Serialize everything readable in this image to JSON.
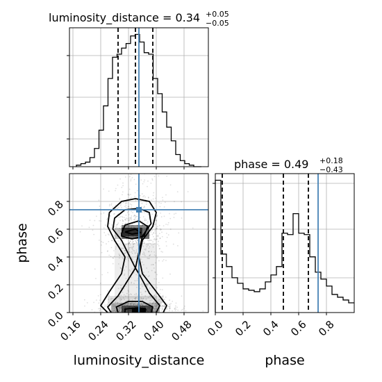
{
  "chart_data": {
    "type": "corner",
    "parameters": [
      "luminosity_distance",
      "phase"
    ],
    "truths": {
      "luminosity_distance": 0.35,
      "phase": 0.74
    },
    "panels": [
      {
        "id": "luminosity_distance-marginal",
        "type": "step-histogram",
        "title_name": "luminosity_distance",
        "title_median": "0.34",
        "title_plus": "+0.05",
        "title_minus": "−0.05",
        "xlim": [
          0.15,
          0.55
        ],
        "quantiles": [
          0.29,
          0.34,
          0.39
        ],
        "truth": 0.35,
        "grid": true,
        "bin_edges": [
          0.17,
          0.183,
          0.196,
          0.209,
          0.222,
          0.235,
          0.248,
          0.261,
          0.274,
          0.287,
          0.3,
          0.313,
          0.326,
          0.339,
          0.352,
          0.365,
          0.378,
          0.391,
          0.404,
          0.417,
          0.43,
          0.443,
          0.456,
          0.469,
          0.482,
          0.495,
          0.508,
          0.53
        ],
        "counts": [
          1,
          2,
          3,
          6,
          12,
          24,
          40,
          58,
          72,
          74,
          78,
          81,
          86,
          87,
          82,
          75,
          74,
          58,
          48,
          36,
          26,
          17,
          8,
          4,
          2,
          1,
          0
        ]
      },
      {
        "id": "phase-marginal",
        "type": "step-histogram",
        "title_name": "phase",
        "title_median": "0.49",
        "title_plus": "+0.18",
        "title_minus": "−0.43",
        "xlim": [
          0.0,
          1.0
        ],
        "xlabel": "phase",
        "xticks": [
          "0.0",
          "0.2",
          "0.4",
          "0.6",
          "0.8"
        ],
        "quantiles": [
          0.05,
          0.49,
          0.67
        ],
        "truth": 0.74,
        "grid": true,
        "bin_edges": [
          0.0,
          0.04,
          0.08,
          0.12,
          0.16,
          0.2,
          0.24,
          0.28,
          0.32,
          0.36,
          0.4,
          0.44,
          0.48,
          0.52,
          0.56,
          0.6,
          0.64,
          0.68,
          0.72,
          0.76,
          0.8,
          0.84,
          0.88,
          0.92,
          0.96,
          1.0
        ],
        "counts": [
          95,
          42,
          33,
          25,
          21,
          17,
          16,
          15,
          17,
          22,
          27,
          33,
          57,
          56,
          71,
          57,
          56,
          40,
          29,
          24,
          19,
          13,
          11,
          9,
          7
        ]
      },
      {
        "id": "luminosity_distance-vs-phase",
        "type": "2d-density-contour",
        "xlabel": "luminosity_distance",
        "ylabel": "phase",
        "xlim": [
          0.15,
          0.55
        ],
        "ylim": [
          0.0,
          1.0
        ],
        "xticks": [
          "0.16",
          "0.24",
          "0.32",
          "0.40",
          "0.48"
        ],
        "yticks": [
          "0.0",
          "0.2",
          "0.4",
          "0.6",
          "0.8"
        ],
        "truth": [
          0.35,
          0.74
        ],
        "grid": true,
        "density_peaks": [
          {
            "x": 0.34,
            "y": 0.04,
            "weight": 1.0
          },
          {
            "x": 0.33,
            "y": 0.58,
            "weight": 0.7
          }
        ]
      }
    ]
  }
}
